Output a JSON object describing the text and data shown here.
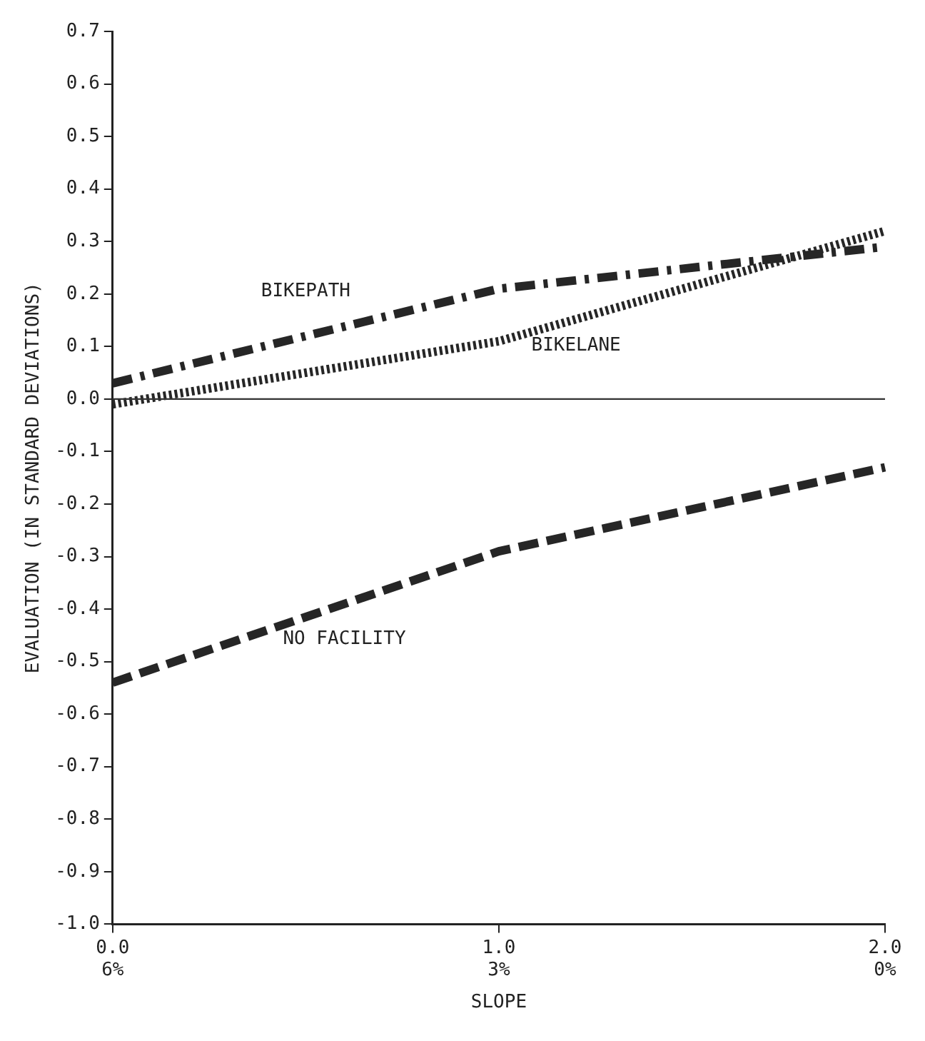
{
  "chart_data": {
    "type": "line",
    "xlabel": "SLOPE",
    "ylabel": "EVALUATION (IN STANDARD DEVIATIONS)",
    "categories": [
      "0.0\n6%",
      "1.0\n3%",
      "2.0\n0%"
    ],
    "series": [
      {
        "name": "BIKEPATH",
        "color": "#262626",
        "values": [
          0.03,
          0.21,
          0.29
        ],
        "line_style": "dashdot"
      },
      {
        "name": "BIKELANE",
        "color": "#262626",
        "values": [
          -0.01,
          0.11,
          0.32
        ],
        "line_style": "dotted"
      },
      {
        "name": "NO FACILITY",
        "color": "#262626",
        "values": [
          -0.54,
          -0.29,
          -0.13
        ],
        "line_style": "dashed"
      }
    ],
    "ylim": [
      -1.0,
      0.7
    ],
    "yticks": [
      {
        "value": -1.0,
        "label": "-1.0"
      },
      {
        "value": -0.9,
        "label": "-0.9"
      },
      {
        "value": -0.8,
        "label": "-0.8"
      },
      {
        "value": -0.7,
        "label": "-0.7"
      },
      {
        "value": -0.6,
        "label": "-0.6"
      },
      {
        "value": -0.5,
        "label": "-0.5"
      },
      {
        "value": -0.4,
        "label": "-0.4"
      },
      {
        "value": -0.3,
        "label": "-0.3"
      },
      {
        "value": -0.2,
        "label": "-0.2"
      },
      {
        "value": -0.1,
        "label": "-0.1"
      },
      {
        "value": 0,
        "label": "0.0"
      },
      {
        "value": 0.1,
        "label": "0.1"
      },
      {
        "value": 0.2,
        "label": "0.2"
      },
      {
        "value": 0.3,
        "label": "0.3"
      },
      {
        "value": 0.4,
        "label": "0.4"
      },
      {
        "value": 0.5,
        "label": "0.5"
      },
      {
        "value": 0.6,
        "label": "0.6"
      },
      {
        "value": 0.7,
        "label": "0.7"
      }
    ],
    "ref_lines": [
      {
        "axis": "y",
        "value": 0,
        "color": "#333333",
        "line_style": "solid"
      }
    ],
    "grid": false,
    "legend": false,
    "marker": "none"
  }
}
